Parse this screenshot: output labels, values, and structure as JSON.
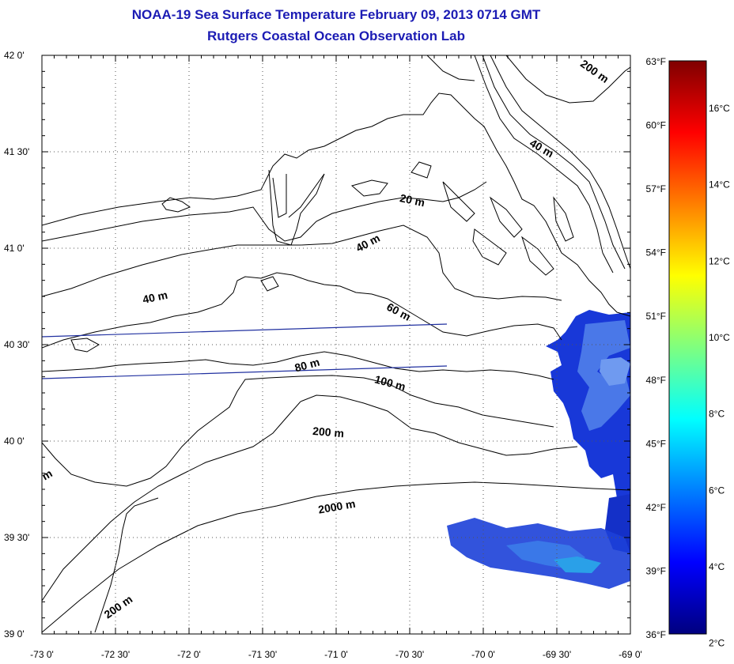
{
  "title": "NOAA-19 Sea Surface Temperature February 09, 2013 0714 GMT",
  "subtitle": "Rutgers Coastal Ocean Observation Lab",
  "map": {
    "lon_range": [
      -73.0,
      -69.0
    ],
    "lat_range": [
      39.0,
      42.0
    ],
    "lon_ticks": [
      "-73 0'",
      "-72 30'",
      "-72 0'",
      "-71 30'",
      "-71 0'",
      "-70 30'",
      "-70 0'",
      "-69 30'",
      "-69 0'"
    ],
    "lat_ticks": [
      "42 0'",
      "41 30'",
      "41 0'",
      "40 30'",
      "40 0'",
      "39 30'",
      "39 0'"
    ],
    "grid": "dotted",
    "contour_labels": [
      "200 m",
      "40 m",
      "20 m",
      "40 m",
      "40 m",
      "60 m",
      "80 m",
      "100 m",
      "200 m",
      "2000 m",
      "200 m",
      "m"
    ]
  },
  "colorbar": {
    "fahrenheit_ticks": [
      "63°F",
      "60°F",
      "57°F",
      "54°F",
      "51°F",
      "48°F",
      "45°F",
      "42°F",
      "39°F",
      "36°F"
    ],
    "celsius_ticks": [
      "16°C",
      "14°C",
      "12°C",
      "10°C",
      "8°C",
      "6°C",
      "4°C",
      "2°C"
    ],
    "colormap": [
      "#00007f",
      "#0000ff",
      "#007fff",
      "#00ffff",
      "#7fff7f",
      "#ffff00",
      "#ff7f00",
      "#ff0000",
      "#7f0000"
    ]
  }
}
